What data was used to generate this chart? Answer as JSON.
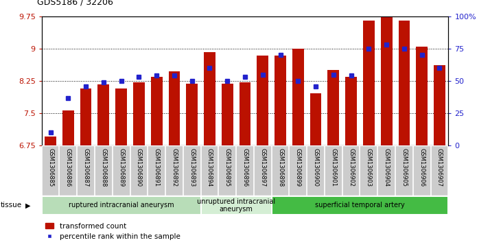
{
  "title": "GDS5186 / 32206",
  "samples": [
    "GSM1306885",
    "GSM1306886",
    "GSM1306887",
    "GSM1306888",
    "GSM1306889",
    "GSM1306890",
    "GSM1306891",
    "GSM1306892",
    "GSM1306893",
    "GSM1306894",
    "GSM1306895",
    "GSM1306896",
    "GSM1306897",
    "GSM1306898",
    "GSM1306899",
    "GSM1306900",
    "GSM1306901",
    "GSM1306902",
    "GSM1306903",
    "GSM1306904",
    "GSM1306905",
    "GSM1306906",
    "GSM1306907"
  ],
  "bar_values": [
    6.97,
    7.56,
    8.07,
    8.17,
    8.07,
    8.22,
    8.35,
    8.48,
    8.19,
    8.92,
    8.19,
    8.22,
    8.84,
    8.84,
    9.0,
    7.96,
    8.51,
    8.35,
    9.65,
    9.73,
    9.65,
    9.05,
    8.62
  ],
  "percentile_ranks": [
    10,
    37,
    46,
    49,
    50,
    53,
    54,
    54,
    50,
    60,
    50,
    53,
    55,
    70,
    50,
    46,
    55,
    54,
    75,
    78,
    75,
    70,
    60
  ],
  "ylim_left": [
    6.75,
    9.75
  ],
  "ylim_right": [
    0,
    100
  ],
  "yticks_left": [
    6.75,
    7.5,
    8.25,
    9.0,
    9.75
  ],
  "yticks_right": [
    0,
    25,
    50,
    75,
    100
  ],
  "ytick_labels_left": [
    "6.75",
    "7.5",
    "8.25",
    "9",
    "9.75"
  ],
  "ytick_labels_right": [
    "0",
    "25",
    "50",
    "75",
    "100%"
  ],
  "bar_color": "#bb1100",
  "marker_color": "#2222cc",
  "groups": [
    {
      "label": "ruptured intracranial aneurysm",
      "start": 0,
      "end": 9,
      "color": "#b8ddb8"
    },
    {
      "label": "unruptured intracranial\naneurysm",
      "start": 9,
      "end": 13,
      "color": "#d4eed4"
    },
    {
      "label": "superficial temporal artery",
      "start": 13,
      "end": 23,
      "color": "#44bb44"
    }
  ],
  "tissue_label": "tissue",
  "legend_bar_label": "transformed count",
  "legend_marker_label": "percentile rank within the sample",
  "cell_bg": "#cccccc",
  "cell_border": "#ffffff",
  "plot_bg": "#ffffff"
}
